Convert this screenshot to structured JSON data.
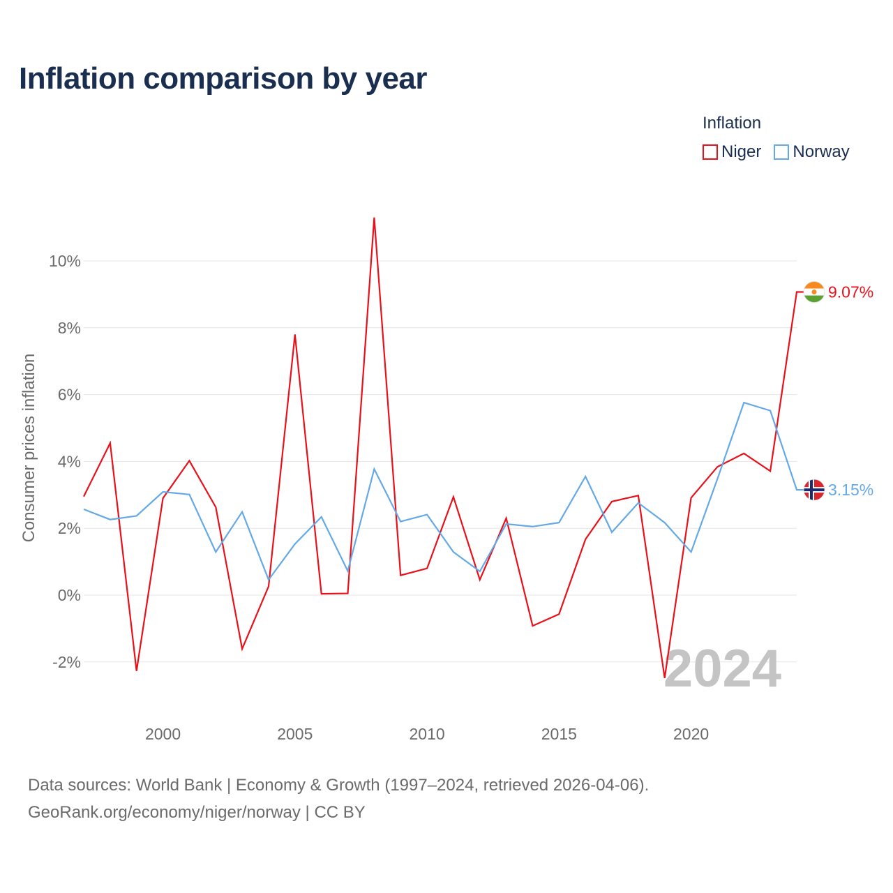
{
  "title": "Inflation comparison by year",
  "legend": {
    "title": "Inflation",
    "items": [
      {
        "label": "Niger",
        "color": "#e8111a"
      },
      {
        "label": "Norway",
        "color": "#64a9e6"
      }
    ]
  },
  "source": {
    "line1": "Data sources: World Bank | Economy & Growth (1997–2024, retrieved 2026-04-06).",
    "line2": "GeoRank.org/economy/niger/norway | CC BY"
  },
  "chart_data": {
    "type": "line",
    "title": "Inflation comparison by year",
    "xlabel": "",
    "ylabel": "Consumer prices inflation",
    "x": [
      1997,
      1998,
      1999,
      2000,
      2001,
      2002,
      2003,
      2004,
      2005,
      2006,
      2007,
      2008,
      2009,
      2010,
      2011,
      2012,
      2013,
      2014,
      2015,
      2016,
      2017,
      2018,
      2019,
      2020,
      2021,
      2022,
      2023,
      2024
    ],
    "xlim": [
      1997,
      2024
    ],
    "ylim": [
      -3,
      11
    ],
    "xticks": [
      2000,
      2005,
      2010,
      2015,
      2020
    ],
    "yticks": [
      -2,
      0,
      2,
      4,
      6,
      8,
      10
    ],
    "ytick_labels": [
      "-2%",
      "0%",
      "2%",
      "4%",
      "6%",
      "8%",
      "10%"
    ],
    "watermark_year": "2024",
    "series": [
      {
        "name": "Niger",
        "color": "#e8111a",
        "values": [
          2.95,
          4.55,
          -2.27,
          2.9,
          4.02,
          2.63,
          -1.61,
          0.26,
          7.8,
          0.04,
          0.05,
          11.3,
          0.59,
          0.8,
          2.94,
          0.46,
          2.3,
          -0.92,
          -0.57,
          1.67,
          2.8,
          2.98,
          -2.48,
          2.91,
          3.84,
          4.24,
          3.71,
          9.07
        ],
        "end_label": "9.07%"
      },
      {
        "name": "Norway",
        "color": "#64a9e6",
        "values": [
          2.57,
          2.26,
          2.37,
          3.09,
          3.01,
          1.29,
          2.49,
          0.46,
          1.53,
          2.34,
          0.72,
          3.77,
          2.2,
          2.41,
          1.29,
          0.71,
          2.13,
          2.05,
          2.17,
          3.55,
          1.88,
          2.76,
          2.17,
          1.29,
          3.48,
          5.76,
          5.52,
          3.15
        ],
        "end_label": "3.15%"
      }
    ]
  }
}
